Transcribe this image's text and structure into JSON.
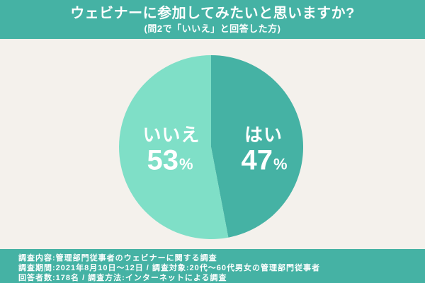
{
  "page": {
    "background_color": "#f4f1ec",
    "band_color": "#45b2a4",
    "text_on_band_color": "#ffffff"
  },
  "header": {
    "title": "ウェビナーに参加してみたいと思いますか?",
    "subtitle": "(問2で「いいえ」と回答した方)"
  },
  "chart_data": {
    "type": "pie",
    "title": "ウェビナーに参加してみたいと思いますか?",
    "subtitle": "(問2で「いいえ」と回答した方)",
    "unit": "%",
    "start_angle_deg": 0,
    "direction": "clockwise",
    "slices": [
      {
        "label": "はい",
        "value": 47,
        "color": "#45b2a4"
      },
      {
        "label": "いいえ",
        "value": 53,
        "color": "#7fdfc7"
      }
    ],
    "legend": "none",
    "labels_inside": true
  },
  "footer": {
    "lines": [
      "調査内容:管理部門従事者のウェビナーに関する調査",
      "調査期間:2021年8月10日〜12日 / 調査対象:20代〜60代男女の管理部門従事者",
      "回答者数:178名 / 調査方法:インターネットによる調査"
    ]
  }
}
